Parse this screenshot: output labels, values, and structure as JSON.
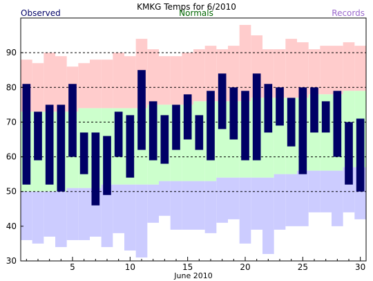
{
  "chart_data": {
    "type": "bar",
    "title": "KMKG Temps for 6/2010",
    "xlabel": "June 2010",
    "ylabel": "",
    "ylim": [
      30,
      100
    ],
    "y_ticks": [
      30,
      40,
      50,
      60,
      70,
      80,
      90
    ],
    "x_ticks": [
      5,
      10,
      15,
      20,
      25,
      30
    ],
    "legend": [
      "Observed",
      "Normals",
      "Records"
    ],
    "legend_placement": "top",
    "gridlines": "dashed horizontal at 50, 60, 70, 80, 90",
    "colors": {
      "observed": "#000066",
      "normals": "#ccffcc",
      "record_high_band": "#ffcccc",
      "record_low_band": "#ccccff",
      "observed_legend_text": "#000066",
      "normals_legend_text": "#006600",
      "records_legend_text": "#9966cc"
    },
    "days": [
      1,
      2,
      3,
      4,
      5,
      6,
      7,
      8,
      9,
      10,
      11,
      12,
      13,
      14,
      15,
      16,
      17,
      18,
      19,
      20,
      21,
      22,
      23,
      24,
      25,
      26,
      27,
      28,
      29,
      30
    ],
    "series": [
      {
        "name": "Records",
        "key": "record_high",
        "values": [
          88,
          87,
          90,
          89,
          86,
          87,
          88,
          88,
          90,
          89,
          94,
          91,
          89,
          89,
          90,
          91,
          92,
          91,
          92,
          98,
          95,
          91,
          91,
          94,
          93,
          91,
          92,
          92,
          93,
          92
        ]
      },
      {
        "name": "Normals",
        "key": "normal_high",
        "values": [
          73,
          73,
          73,
          73,
          73,
          74,
          74,
          74,
          74,
          74,
          74,
          75,
          75,
          75,
          75,
          76,
          76,
          76,
          76,
          76,
          77,
          77,
          77,
          77,
          77,
          78,
          78,
          78,
          79,
          79
        ]
      },
      {
        "name": "Normals",
        "key": "normal_low",
        "values": [
          50,
          50,
          50,
          50,
          51,
          51,
          51,
          52,
          52,
          52,
          52,
          52,
          53,
          53,
          53,
          53,
          53,
          54,
          54,
          54,
          54,
          54,
          55,
          55,
          56,
          56,
          56,
          56,
          57,
          57
        ]
      },
      {
        "name": "Records",
        "key": "record_low",
        "values": [
          36,
          35,
          37,
          34,
          36,
          36,
          37,
          34,
          38,
          33,
          31,
          41,
          43,
          39,
          39,
          39,
          38,
          41,
          42,
          35,
          39,
          32,
          39,
          40,
          40,
          44,
          44,
          40,
          44,
          42
        ]
      },
      {
        "name": "Observed",
        "key": "observed_high",
        "values": [
          81,
          73,
          75,
          75,
          81,
          67,
          67,
          66,
          73,
          72,
          85,
          76,
          72,
          75,
          78,
          72,
          79,
          84,
          80,
          79,
          84,
          81,
          80,
          77,
          80,
          80,
          76,
          79,
          70,
          71
        ]
      },
      {
        "name": "Observed",
        "key": "observed_low",
        "values": [
          52,
          59,
          52,
          50,
          60,
          55,
          46,
          49,
          60,
          54,
          62,
          59,
          58,
          62,
          65,
          62,
          59,
          68,
          65,
          59,
          59,
          67,
          69,
          63,
          55,
          67,
          67,
          60,
          52,
          50
        ]
      }
    ]
  }
}
